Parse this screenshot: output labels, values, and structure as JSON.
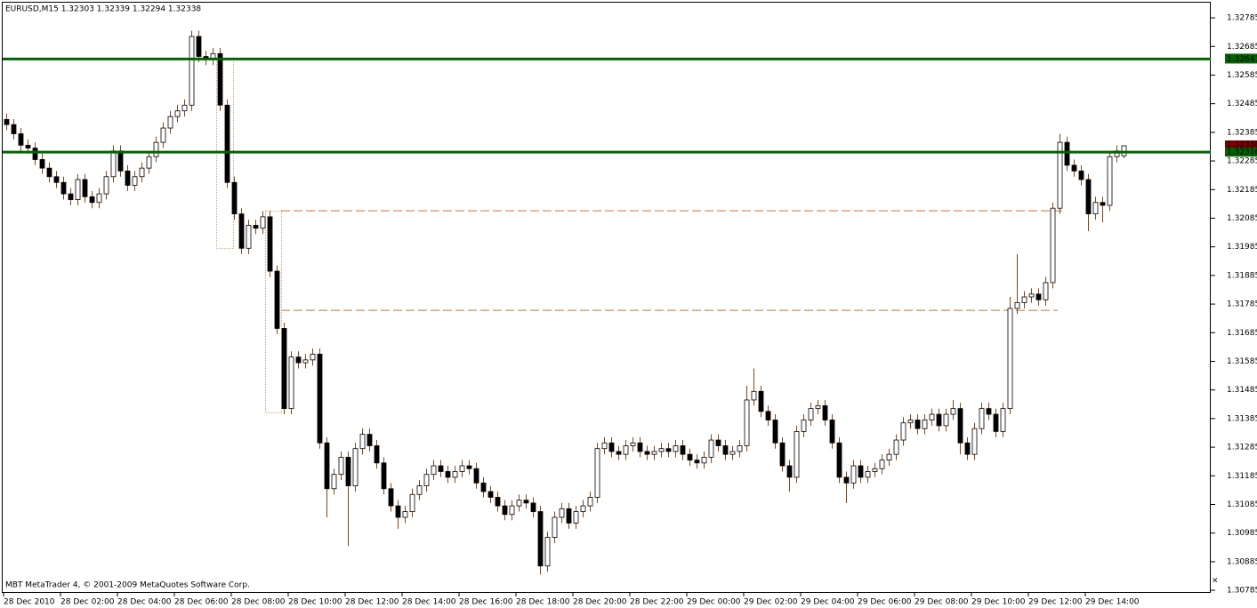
{
  "chart_data": {
    "type": "candlestick",
    "title": "EURUSD,M15  1.32303 1.32339 1.32294 1.32338",
    "footer": "MBT MetaTrader 4, © 2001-2009 MetaQuotes Software Corp.",
    "categories": [
      "28 Dec 2010",
      null,
      null,
      null,
      null,
      null,
      null,
      null,
      "28 Dec 02:00",
      null,
      null,
      null,
      null,
      null,
      null,
      null,
      "28 Dec 04:00",
      null,
      null,
      null,
      null,
      null,
      null,
      null,
      "28 Dec 06:00",
      null,
      null,
      null,
      null,
      null,
      null,
      null,
      "28 Dec 08:00",
      null,
      null,
      null,
      null,
      null,
      null,
      null,
      "28 Dec 10:00",
      null,
      null,
      null,
      null,
      null,
      null,
      null,
      "28 Dec 12:00",
      null,
      null,
      null,
      null,
      null,
      null,
      null,
      "28 Dec 14:00",
      null,
      null,
      null,
      null,
      null,
      null,
      null,
      "28 Dec 16:00",
      null,
      null,
      null,
      null,
      null,
      null,
      null,
      "28 Dec 18:00",
      null,
      null,
      null,
      null,
      null,
      null,
      null,
      "28 Dec 20:00",
      null,
      null,
      null,
      null,
      null,
      null,
      null,
      "28 Dec 22:00",
      null,
      null,
      null,
      null,
      null,
      null,
      null,
      "29 Dec 00:00",
      null,
      null,
      null,
      null,
      null,
      null,
      null,
      "29 Dec 02:00",
      null,
      null,
      null,
      null,
      null,
      null,
      null,
      "29 Dec 04:00",
      null,
      null,
      null,
      null,
      null,
      null,
      null,
      "29 Dec 06:00",
      null,
      null,
      null,
      null,
      null,
      null,
      null,
      "29 Dec 08:00",
      null,
      null,
      null,
      null,
      null,
      null,
      null,
      "29 Dec 10:00",
      null,
      null,
      null,
      null,
      null,
      null,
      null,
      "29 Dec 12:00",
      null,
      null,
      null,
      null,
      null,
      null,
      null,
      "29 Dec 14:00",
      null,
      null,
      null,
      null,
      null
    ],
    "open": [
      1.3243,
      1.32412,
      1.3238,
      1.3234,
      1.3233,
      1.3229,
      1.3226,
      1.3223,
      1.3221,
      1.3217,
      1.3215,
      1.3222,
      1.3216,
      1.3214,
      1.3217,
      1.3223,
      1.3232,
      1.3225,
      1.322,
      1.3223,
      1.3226,
      1.323,
      1.3235,
      1.324,
      1.3244,
      1.3246,
      1.3248,
      1.3272,
      1.3265,
      1.3264,
      1.3266,
      1.3248,
      1.3221,
      1.321,
      1.3198,
      1.3206,
      1.3205,
      1.3209,
      1.319,
      1.317,
      1.3142,
      1.316,
      1.3158,
      1.3159,
      1.3161,
      1.313,
      1.3114,
      1.3119,
      1.3125,
      1.3115,
      1.3128,
      1.3133,
      1.3129,
      1.3123,
      1.3114,
      1.3108,
      1.3104,
      1.3106,
      1.3112,
      1.3115,
      1.3119,
      1.3122,
      1.312,
      1.3118,
      1.312,
      1.3122,
      1.3121,
      1.3116,
      1.3113,
      1.3111,
      1.3108,
      1.3105,
      1.3108,
      1.311,
      1.3109,
      1.3106,
      1.3087,
      1.3097,
      1.3104,
      1.3107,
      1.3102,
      1.3106,
      1.3108,
      1.3111,
      1.3128,
      1.313,
      1.3127,
      1.3126,
      1.3129,
      1.313,
      1.3127,
      1.3126,
      1.3127,
      1.3128,
      1.3127,
      1.3129,
      1.3126,
      1.3124,
      1.3123,
      1.3125,
      1.3131,
      1.3129,
      1.3126,
      1.3127,
      1.3129,
      1.3145,
      1.3148,
      1.3141,
      1.3138,
      1.313,
      1.3122,
      1.3118,
      1.3134,
      1.3138,
      1.3142,
      1.3143,
      1.3138,
      1.313,
      1.3118,
      1.3116,
      1.3122,
      1.3118,
      1.312,
      1.3121,
      1.3124,
      1.3126,
      1.3131,
      1.3137,
      1.3138,
      1.3135,
      1.3138,
      1.314,
      1.3136,
      1.314,
      1.3142,
      1.313,
      1.3126,
      1.3135,
      1.3142,
      1.314,
      1.3134,
      1.3142,
      1.3177,
      1.3179,
      1.3181,
      1.3182,
      1.318,
      1.3186,
      1.3212,
      1.3235,
      1.3227,
      1.3225,
      1.3222,
      1.321,
      1.3214,
      1.3213,
      1.323,
      1.32303
    ],
    "high": [
      1.3245,
      1.32432,
      1.324,
      1.3236,
      1.3235,
      1.3231,
      1.3228,
      1.3225,
      1.3223,
      1.3219,
      1.3224,
      1.3224,
      1.3218,
      1.3219,
      1.3225,
      1.3234,
      1.3234,
      1.3227,
      1.3225,
      1.3228,
      1.3232,
      1.3237,
      1.3242,
      1.3246,
      1.3248,
      1.325,
      1.3274,
      1.3274,
      1.3267,
      1.3268,
      1.3268,
      1.325,
      1.3223,
      1.3212,
      1.3208,
      1.3208,
      1.3211,
      1.3211,
      1.3192,
      1.3172,
      1.3162,
      1.3162,
      1.3161,
      1.3163,
      1.3163,
      1.3132,
      1.3121,
      1.3127,
      1.3127,
      1.313,
      1.3135,
      1.3135,
      1.3131,
      1.3125,
      1.3116,
      1.311,
      1.3108,
      1.3114,
      1.3117,
      1.3121,
      1.3124,
      1.3124,
      1.3122,
      1.3122,
      1.3124,
      1.3124,
      1.3123,
      1.3118,
      1.3115,
      1.3113,
      1.311,
      1.311,
      1.3112,
      1.3112,
      1.3111,
      1.3108,
      1.3099,
      1.3106,
      1.3109,
      1.3109,
      1.3108,
      1.311,
      1.3113,
      1.313,
      1.3132,
      1.3132,
      1.3129,
      1.3131,
      1.3132,
      1.3132,
      1.3129,
      1.3129,
      1.313,
      1.313,
      1.3131,
      1.3131,
      1.3128,
      1.3126,
      1.3127,
      1.3133,
      1.3133,
      1.3131,
      1.3129,
      1.3131,
      1.315,
      1.3156,
      1.315,
      1.3143,
      1.314,
      1.3132,
      1.3124,
      1.3136,
      1.314,
      1.3144,
      1.3145,
      1.3145,
      1.314,
      1.3132,
      1.312,
      1.3124,
      1.3124,
      1.3122,
      1.3123,
      1.3126,
      1.3128,
      1.3133,
      1.3139,
      1.314,
      1.314,
      1.314,
      1.3142,
      1.3142,
      1.3142,
      1.3145,
      1.3144,
      1.3132,
      1.3137,
      1.3144,
      1.3144,
      1.3142,
      1.3144,
      1.3181,
      1.3196,
      1.3183,
      1.3184,
      1.3184,
      1.3188,
      1.3214,
      1.3238,
      1.3237,
      1.3229,
      1.3227,
      1.3224,
      1.3216,
      1.3216,
      1.3232,
      1.3234,
      1.32339
    ],
    "low": [
      1.32392,
      1.3236,
      1.3232,
      1.3231,
      1.3227,
      1.3224,
      1.3221,
      1.3219,
      1.3215,
      1.3213,
      1.3213,
      1.3214,
      1.3212,
      1.3212,
      1.3215,
      1.3221,
      1.3223,
      1.3218,
      1.3218,
      1.3221,
      1.3224,
      1.3228,
      1.3233,
      1.3238,
      1.3242,
      1.3244,
      1.3246,
      1.3263,
      1.3262,
      1.3262,
      1.3246,
      1.3219,
      1.3208,
      1.3196,
      1.3196,
      1.3203,
      1.3203,
      1.3188,
      1.3168,
      1.314,
      1.314,
      1.3156,
      1.3156,
      1.3157,
      1.3128,
      1.3104,
      1.3112,
      1.3117,
      1.3094,
      1.3113,
      1.3126,
      1.3127,
      1.3121,
      1.3112,
      1.3106,
      1.31,
      1.3102,
      1.3104,
      1.311,
      1.3113,
      1.3117,
      1.3118,
      1.3116,
      1.3116,
      1.3118,
      1.3119,
      1.3114,
      1.3111,
      1.3109,
      1.3106,
      1.3103,
      1.3103,
      1.3106,
      1.3107,
      1.3104,
      1.3084,
      1.3085,
      1.3095,
      1.3102,
      1.31,
      1.31,
      1.3104,
      1.3106,
      1.3109,
      1.3126,
      1.3125,
      1.3124,
      1.3124,
      1.3127,
      1.3125,
      1.3124,
      1.3124,
      1.3125,
      1.3125,
      1.3125,
      1.3124,
      1.3122,
      1.3121,
      1.3121,
      1.3123,
      1.3127,
      1.3124,
      1.3124,
      1.3125,
      1.3127,
      1.3143,
      1.3139,
      1.3136,
      1.3128,
      1.312,
      1.3113,
      1.3116,
      1.3132,
      1.3136,
      1.314,
      1.3136,
      1.3128,
      1.3116,
      1.3109,
      1.3114,
      1.3116,
      1.3116,
      1.3118,
      1.3119,
      1.3122,
      1.3124,
      1.3129,
      1.3135,
      1.3133,
      1.3133,
      1.3136,
      1.3134,
      1.3134,
      1.3138,
      1.3126,
      1.3124,
      1.3124,
      1.3133,
      1.3138,
      1.3132,
      1.3132,
      1.314,
      1.3175,
      1.3177,
      1.3179,
      1.3178,
      1.3178,
      1.3184,
      1.321,
      1.3225,
      1.3223,
      1.322,
      1.3204,
      1.3208,
      1.3207,
      1.3211,
      1.3228,
      1.32294
    ],
    "close": [
      1.32412,
      1.3238,
      1.3234,
      1.3233,
      1.3229,
      1.3226,
      1.3223,
      1.3221,
      1.3217,
      1.3215,
      1.3222,
      1.3216,
      1.3214,
      1.3217,
      1.3223,
      1.3232,
      1.3225,
      1.322,
      1.3223,
      1.3226,
      1.323,
      1.3235,
      1.324,
      1.3244,
      1.3246,
      1.3248,
      1.3272,
      1.3265,
      1.3264,
      1.3266,
      1.3248,
      1.3221,
      1.321,
      1.3198,
      1.3206,
      1.3205,
      1.3209,
      1.319,
      1.317,
      1.3142,
      1.316,
      1.3158,
      1.3159,
      1.3161,
      1.313,
      1.3114,
      1.3119,
      1.3125,
      1.3115,
      1.3128,
      1.3133,
      1.3129,
      1.3123,
      1.3114,
      1.3108,
      1.3104,
      1.3106,
      1.3112,
      1.3115,
      1.3119,
      1.3122,
      1.312,
      1.3118,
      1.312,
      1.3122,
      1.3121,
      1.3116,
      1.3113,
      1.3111,
      1.3108,
      1.3105,
      1.3108,
      1.311,
      1.3109,
      1.3106,
      1.3087,
      1.3097,
      1.3104,
      1.3107,
      1.3102,
      1.3106,
      1.3108,
      1.3111,
      1.3128,
      1.313,
      1.3127,
      1.3126,
      1.3129,
      1.313,
      1.3127,
      1.3126,
      1.3127,
      1.3128,
      1.3127,
      1.3129,
      1.3126,
      1.3124,
      1.3123,
      1.3125,
      1.3131,
      1.3129,
      1.3126,
      1.3127,
      1.3129,
      1.3145,
      1.3148,
      1.3141,
      1.3138,
      1.313,
      1.3122,
      1.3118,
      1.3134,
      1.3138,
      1.3142,
      1.3143,
      1.3138,
      1.313,
      1.3118,
      1.3116,
      1.3122,
      1.3118,
      1.312,
      1.3121,
      1.3124,
      1.3126,
      1.3131,
      1.3137,
      1.3138,
      1.3135,
      1.3138,
      1.314,
      1.3136,
      1.314,
      1.3142,
      1.313,
      1.3126,
      1.3135,
      1.3142,
      1.314,
      1.3134,
      1.3142,
      1.3177,
      1.3179,
      1.3181,
      1.3182,
      1.318,
      1.3186,
      1.3212,
      1.3235,
      1.3227,
      1.3225,
      1.3222,
      1.321,
      1.3214,
      1.3213,
      1.323,
      1.3232,
      1.32338
    ],
    "bull_color": "#ffffff",
    "bear_color": "#000000",
    "outline_color": "#000000",
    "wick_color": "#8b4513",
    "ylim": [
      1.30776,
      1.32838
    ],
    "yticks": [
      1.32785,
      1.32685,
      1.32585,
      1.32485,
      1.32385,
      1.32285,
      1.32185,
      1.32085,
      1.31985,
      1.31885,
      1.31785,
      1.31685,
      1.31585,
      1.31485,
      1.31385,
      1.31285,
      1.31185,
      1.31085,
      1.30985,
      1.30885,
      1.30785
    ],
    "lines": [
      {
        "value": 1.32641,
        "color": "#006400"
      },
      {
        "value": 1.32316,
        "color": "#006400"
      }
    ],
    "dashed_levels": [
      1.32111,
      1.31763
    ],
    "dashed_color": "#c87533",
    "bid_color": "#800000"
  }
}
